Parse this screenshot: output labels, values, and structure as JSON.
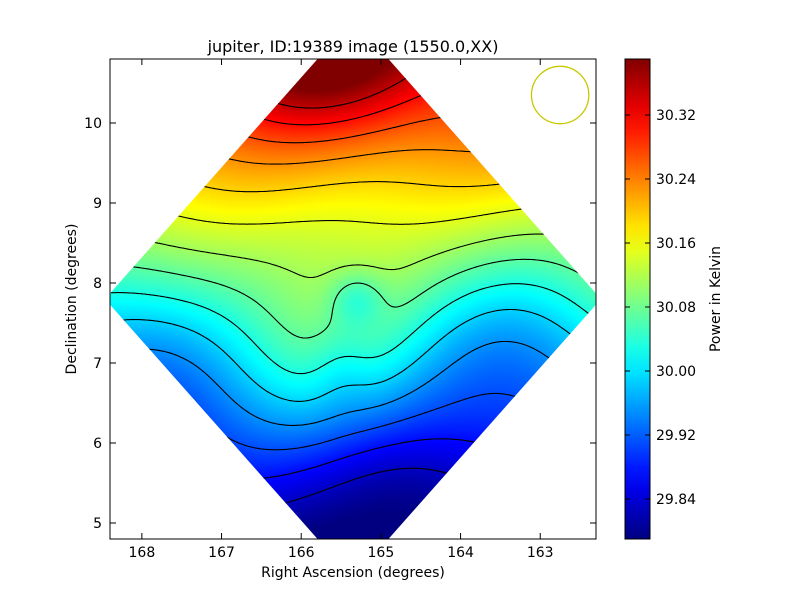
{
  "chart_data": {
    "type": "heatmap",
    "title": "jupiter, ID:19389 image (1550.0,XX)",
    "xlabel": "Right Ascension (degrees)",
    "ylabel": "Declination (degrees)",
    "xlim": [
      168.4,
      162.3
    ],
    "ylim": [
      4.8,
      10.8
    ],
    "x_ticks": [
      168,
      167,
      166,
      165,
      164,
      163
    ],
    "y_ticks": [
      5,
      6,
      7,
      8,
      9,
      10
    ],
    "x_tick_labels": [
      "168",
      "167",
      "166",
      "165",
      "164",
      "163"
    ],
    "y_tick_labels": [
      "5",
      "6",
      "7",
      "8",
      "9",
      "10"
    ],
    "colorbar": {
      "label": "Power in Kelvin",
      "range": [
        29.79,
        30.39
      ],
      "ticks": [
        29.84,
        29.92,
        30.0,
        30.08,
        30.16,
        30.24,
        30.32
      ],
      "tick_labels": [
        "29.84",
        "29.92",
        "30.00",
        "30.08",
        "30.16",
        "30.24",
        "30.32"
      ],
      "colormap": "jet"
    },
    "field_extremes": {
      "max_center": [
        165.8,
        10.8
      ],
      "max_value": 30.38,
      "min_center": [
        164.6,
        5.5
      ],
      "min_value": 29.8,
      "local_min_center": [
        165.3,
        7.8
      ],
      "local_min_value": 30.02
    },
    "contour_levels": [
      29.83,
      29.87,
      29.91,
      29.95,
      29.99,
      30.03,
      30.07,
      30.11,
      30.15,
      30.19,
      30.23,
      30.27,
      30.31,
      30.35
    ],
    "valid_region": "diamond",
    "beam_circle": {
      "center": [
        162.75,
        10.35
      ],
      "radius_deg": 0.36,
      "color": "#c8c800"
    },
    "grid": false
  }
}
